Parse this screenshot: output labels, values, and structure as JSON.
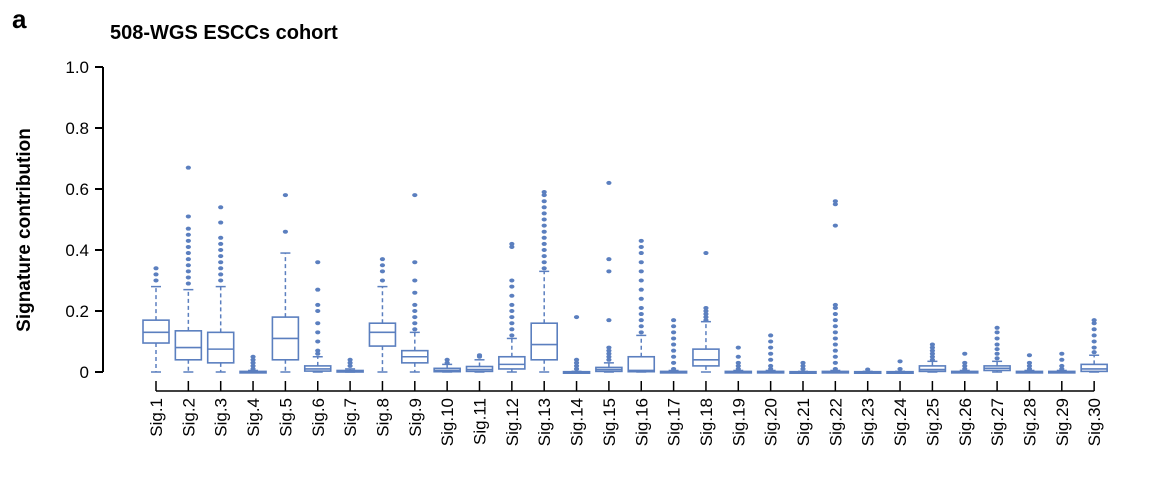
{
  "panel_letter": "a",
  "chart_data": {
    "type": "box",
    "title": "508-WGS ESCCs cohort",
    "xlabel": "",
    "ylabel": "Signature contribution",
    "ylim": [
      0,
      1.0
    ],
    "yticks": [
      "0",
      "0.2",
      "0.4",
      "0.6",
      "0.8",
      "1.0"
    ],
    "grid": false,
    "color": "#5b7fbf",
    "categories": [
      "Sig.1",
      "Sig.2",
      "Sig.3",
      "Sig.4",
      "Sig.5",
      "Sig.6",
      "Sig.7",
      "Sig.8",
      "Sig.9",
      "Sig.10",
      "Sig.11",
      "Sig.12",
      "Sig.13",
      "Sig.14",
      "Sig.15",
      "Sig.16",
      "Sig.17",
      "Sig.18",
      "Sig.19",
      "Sig.20",
      "Sig.21",
      "Sig.22",
      "Sig.23",
      "Sig.24",
      "Sig.25",
      "Sig.26",
      "Sig.27",
      "Sig.28",
      "Sig.29",
      "Sig.30"
    ],
    "boxes": [
      {
        "min": 0,
        "q1": 0.095,
        "median": 0.13,
        "q3": 0.17,
        "max": 0.28,
        "outliers": [
          0.3,
          0.32,
          0.34
        ]
      },
      {
        "min": 0,
        "q1": 0.04,
        "median": 0.08,
        "q3": 0.135,
        "max": 0.27,
        "outliers": [
          0.29,
          0.31,
          0.33,
          0.35,
          0.37,
          0.39,
          0.41,
          0.43,
          0.45,
          0.47,
          0.51,
          0.67
        ]
      },
      {
        "min": 0,
        "q1": 0.03,
        "median": 0.075,
        "q3": 0.13,
        "max": 0.28,
        "outliers": [
          0.3,
          0.32,
          0.34,
          0.36,
          0.38,
          0.4,
          0.42,
          0.44,
          0.49,
          0.54
        ]
      },
      {
        "min": 0,
        "q1": 0,
        "median": 0,
        "q3": 0.002,
        "max": 0.005,
        "outliers": [
          0.01,
          0.02,
          0.03,
          0.04,
          0.05
        ]
      },
      {
        "min": 0,
        "q1": 0.04,
        "median": 0.11,
        "q3": 0.18,
        "max": 0.39,
        "outliers": [
          0.46,
          0.58
        ]
      },
      {
        "min": 0,
        "q1": 0.003,
        "median": 0.01,
        "q3": 0.02,
        "max": 0.05,
        "outliers": [
          0.06,
          0.07,
          0.1,
          0.13,
          0.16,
          0.2,
          0.22,
          0.27,
          0.36
        ]
      },
      {
        "min": 0,
        "q1": 0,
        "median": 0.002,
        "q3": 0.005,
        "max": 0.01,
        "outliers": [
          0.02,
          0.03,
          0.04
        ]
      },
      {
        "min": 0,
        "q1": 0.085,
        "median": 0.13,
        "q3": 0.16,
        "max": 0.28,
        "outliers": [
          0.3,
          0.33,
          0.35,
          0.37
        ]
      },
      {
        "min": 0,
        "q1": 0.03,
        "median": 0.05,
        "q3": 0.07,
        "max": 0.13,
        "outliers": [
          0.14,
          0.16,
          0.18,
          0.2,
          0.22,
          0.26,
          0.3,
          0.36,
          0.58
        ]
      },
      {
        "min": 0,
        "q1": 0.001,
        "median": 0.005,
        "q3": 0.012,
        "max": 0.025,
        "outliers": [
          0.03,
          0.04
        ]
      },
      {
        "min": 0,
        "q1": 0.002,
        "median": 0.008,
        "q3": 0.018,
        "max": 0.04,
        "outliers": [
          0.05,
          0.055
        ]
      },
      {
        "min": 0,
        "q1": 0.01,
        "median": 0.025,
        "q3": 0.05,
        "max": 0.11,
        "outliers": [
          0.12,
          0.14,
          0.16,
          0.18,
          0.2,
          0.22,
          0.25,
          0.28,
          0.3,
          0.41,
          0.42
        ]
      },
      {
        "min": 0,
        "q1": 0.04,
        "median": 0.09,
        "q3": 0.16,
        "max": 0.33,
        "outliers": [
          0.34,
          0.36,
          0.38,
          0.4,
          0.42,
          0.44,
          0.46,
          0.48,
          0.5,
          0.52,
          0.54,
          0.56,
          0.58,
          0.59
        ]
      },
      {
        "min": 0,
        "q1": 0,
        "median": 0,
        "q3": 0.001,
        "max": 0.002,
        "outliers": [
          0.01,
          0.02,
          0.03,
          0.04,
          0.18
        ]
      },
      {
        "min": 0,
        "q1": 0.002,
        "median": 0.008,
        "q3": 0.015,
        "max": 0.03,
        "outliers": [
          0.04,
          0.05,
          0.06,
          0.07,
          0.08,
          0.17,
          0.33,
          0.37,
          0.62
        ]
      },
      {
        "min": 0,
        "q1": 0.001,
        "median": 0.005,
        "q3": 0.05,
        "max": 0.12,
        "outliers": [
          0.13,
          0.15,
          0.17,
          0.19,
          0.21,
          0.24,
          0.27,
          0.3,
          0.33,
          0.36,
          0.39,
          0.41,
          0.43
        ]
      },
      {
        "min": 0,
        "q1": 0,
        "median": 0,
        "q3": 0.002,
        "max": 0.005,
        "outliers": [
          0.01,
          0.03,
          0.05,
          0.07,
          0.09,
          0.11,
          0.13,
          0.15,
          0.17
        ]
      },
      {
        "min": 0,
        "q1": 0.02,
        "median": 0.04,
        "q3": 0.075,
        "max": 0.165,
        "outliers": [
          0.17,
          0.18,
          0.19,
          0.2,
          0.21,
          0.39
        ]
      },
      {
        "min": 0,
        "q1": 0,
        "median": 0,
        "q3": 0.002,
        "max": 0.005,
        "outliers": [
          0.01,
          0.02,
          0.03,
          0.05,
          0.08
        ]
      },
      {
        "min": 0,
        "q1": 0,
        "median": 0,
        "q3": 0.002,
        "max": 0.005,
        "outliers": [
          0.01,
          0.02,
          0.04,
          0.06,
          0.08,
          0.1,
          0.12
        ]
      },
      {
        "min": 0,
        "q1": 0,
        "median": 0,
        "q3": 0.001,
        "max": 0.002,
        "outliers": [
          0.01,
          0.02,
          0.03
        ]
      },
      {
        "min": 0,
        "q1": 0,
        "median": 0,
        "q3": 0.002,
        "max": 0.005,
        "outliers": [
          0.01,
          0.03,
          0.05,
          0.07,
          0.09,
          0.11,
          0.13,
          0.15,
          0.17,
          0.19,
          0.21,
          0.22,
          0.48,
          0.55,
          0.56
        ]
      },
      {
        "min": 0,
        "q1": 0,
        "median": 0,
        "q3": 0.001,
        "max": 0.002,
        "outliers": [
          0.008
        ]
      },
      {
        "min": 0,
        "q1": 0,
        "median": 0,
        "q3": 0.001,
        "max": 0.002,
        "outliers": [
          0.01,
          0.035
        ]
      },
      {
        "min": 0,
        "q1": 0.002,
        "median": 0.008,
        "q3": 0.02,
        "max": 0.035,
        "outliers": [
          0.04,
          0.05,
          0.06,
          0.07,
          0.08,
          0.09
        ]
      },
      {
        "min": 0,
        "q1": 0,
        "median": 0,
        "q3": 0.002,
        "max": 0.005,
        "outliers": [
          0.01,
          0.02,
          0.03,
          0.06
        ]
      },
      {
        "min": 0,
        "q1": 0.005,
        "median": 0.012,
        "q3": 0.02,
        "max": 0.035,
        "outliers": [
          0.045,
          0.06,
          0.075,
          0.09,
          0.11,
          0.13,
          0.145
        ]
      },
      {
        "min": 0,
        "q1": 0,
        "median": 0,
        "q3": 0.002,
        "max": 0.005,
        "outliers": [
          0.01,
          0.02,
          0.03,
          0.055
        ]
      },
      {
        "min": 0,
        "q1": 0,
        "median": 0,
        "q3": 0.002,
        "max": 0.005,
        "outliers": [
          0.01,
          0.02,
          0.04,
          0.06
        ]
      },
      {
        "min": 0,
        "q1": 0.002,
        "median": 0.01,
        "q3": 0.025,
        "max": 0.055,
        "outliers": [
          0.065,
          0.08,
          0.1,
          0.12,
          0.14,
          0.16,
          0.17
        ]
      }
    ]
  }
}
